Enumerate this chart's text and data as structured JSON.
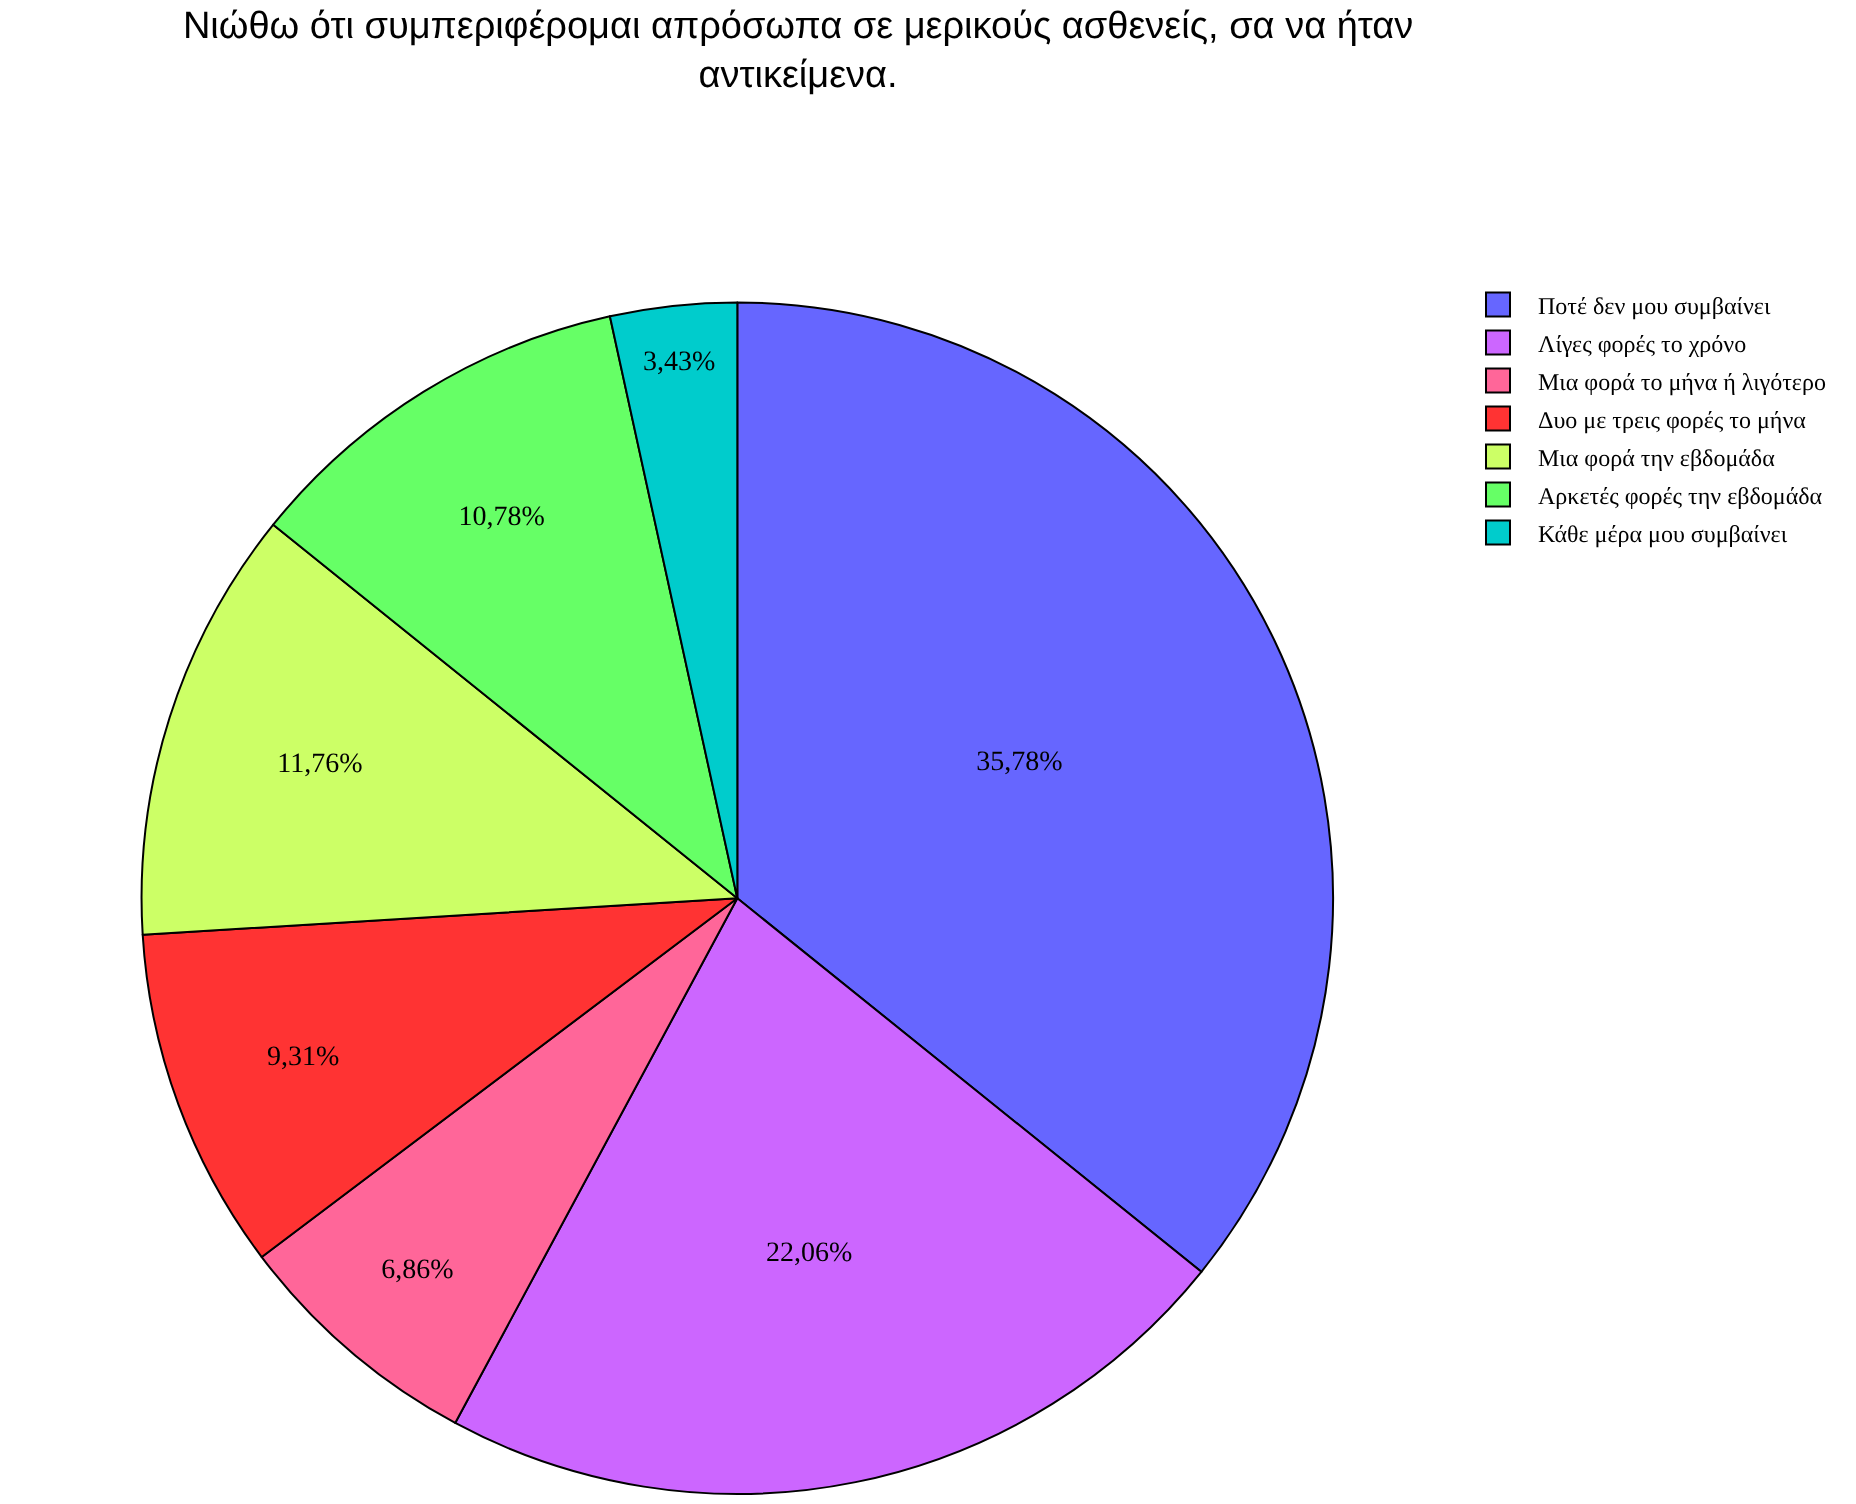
{
  "chart_data": {
    "type": "pie",
    "title": "Νιώθω ότι συμπεριφέρομαι απρόσωπα σε μερικούς ασθενείς, σα να ήταν αντικείμενα.",
    "categories": [
      "Ποτέ δεν μου συμβαίνει",
      "Λίγες φορές το χρόνο",
      "Μια φορά το μήνα ή λιγότερο",
      "Δυο με τρεις φορές το μήνα",
      "Μια φορά την εβδομάδα",
      "Αρκετές φορές την εβδομάδα",
      "Κάθε μέρα μου συμβαίνει"
    ],
    "values": [
      35.78,
      22.06,
      6.86,
      9.31,
      11.76,
      10.78,
      3.43
    ],
    "colors": [
      "#6666ff",
      "#cc66ff",
      "#ff6699",
      "#ff3333",
      "#ccff66",
      "#66ff66",
      "#00cccc"
    ],
    "value_labels": [
      "35,78%",
      "22,06%",
      "6,86%",
      "9,31%",
      "11,76%",
      "10,78%",
      "3,43%"
    ],
    "legend": "top right"
  }
}
